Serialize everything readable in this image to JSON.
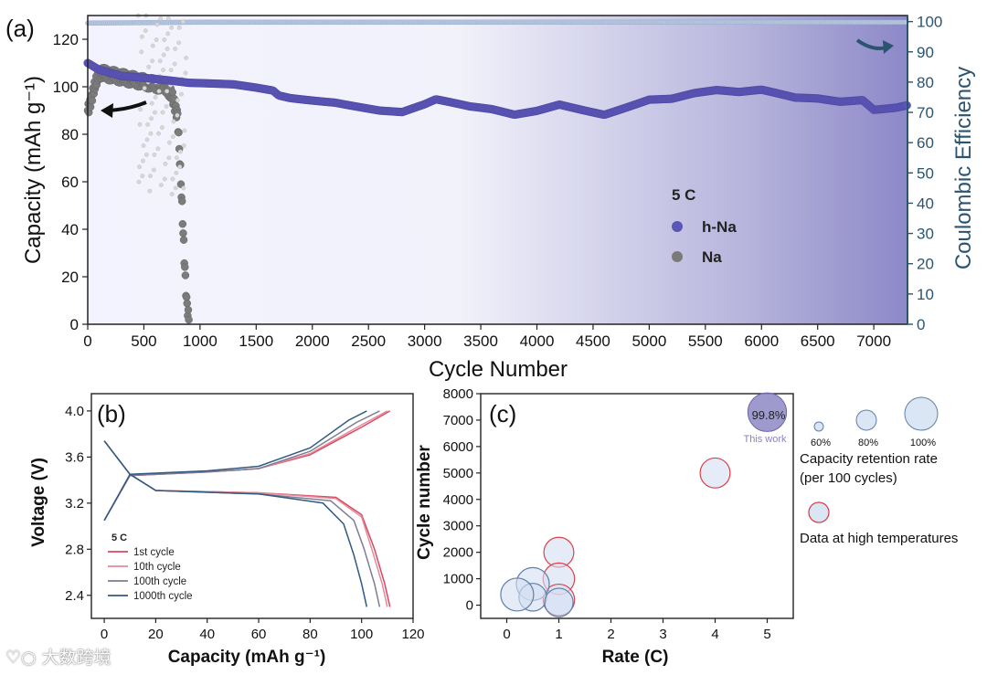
{
  "panel_a": {
    "label": "(a)",
    "xlabel": "Cycle Number",
    "ylabel": "Capacity (mAh g⁻¹)",
    "y2label": "Coulombic Efficiency",
    "x_ticks": [
      "0",
      "500",
      "1000",
      "1500",
      "2000",
      "2500",
      "3000",
      "3500",
      "4000",
      "4500",
      "5000",
      "5500",
      "6000",
      "6500",
      "7000"
    ],
    "y_ticks": [
      "0",
      "20",
      "40",
      "60",
      "80",
      "100",
      "120"
    ],
    "y2_ticks": [
      "0",
      "10",
      "20",
      "30",
      "40",
      "50",
      "60",
      "70",
      "80",
      "90",
      "100"
    ],
    "legend_title": "5 C",
    "legend_items": [
      {
        "name": "h-Na",
        "color": "#5b55b6"
      },
      {
        "name": "Na",
        "color": "#7a7a7a"
      }
    ]
  },
  "panel_b": {
    "label": "(b)",
    "xlabel": "Capacity (mAh g⁻¹)",
    "ylabel": "Voltage (V)",
    "x_ticks": [
      "0",
      "20",
      "40",
      "60",
      "80",
      "100",
      "120"
    ],
    "y_ticks": [
      "2.4",
      "2.8",
      "3.2",
      "3.6",
      "4.0"
    ],
    "rate_label": "5 C",
    "legend_items": [
      {
        "name": "1st cycle",
        "color": "#d9485f"
      },
      {
        "name": "10th cycle",
        "color": "#e58a9a"
      },
      {
        "name": "100th cycle",
        "color": "#7d7d95"
      },
      {
        "name": "1000th cycle",
        "color": "#2f5a82"
      }
    ]
  },
  "panel_c": {
    "label": "(c)",
    "xlabel": "Rate (C)",
    "ylabel": "Cycle number",
    "x_ticks": [
      "0",
      "1",
      "2",
      "3",
      "4",
      "5"
    ],
    "y_ticks": [
      "0",
      "1000",
      "2000",
      "3000",
      "4000",
      "5000",
      "6000",
      "7000",
      "8000"
    ],
    "highlight_value": "99.8%",
    "highlight_caption": "This work",
    "size_legend": [
      "60%",
      "80%",
      "100%"
    ],
    "size_legend_title": "Capacity retention rate",
    "size_legend_subtitle": "(per 100 cycles)",
    "temp_legend": "Data at high temperatures"
  },
  "watermark": "大数跨境",
  "chart_data": [
    {
      "type": "scatter",
      "title": "",
      "xlabel": "Cycle Number",
      "ylabel": "Capacity (mAh g-1)",
      "y2label": "Coulombic Efficiency",
      "xlim": [
        0,
        7300
      ],
      "ylim": [
        0,
        130
      ],
      "y2lim": [
        0,
        102
      ],
      "series": [
        {
          "name": "h-Na capacity",
          "x": [
            0,
            100,
            300,
            500,
            700,
            900,
            1100,
            1300,
            1500,
            1650,
            1700,
            1800,
            2000,
            2200,
            2400,
            2600,
            2800,
            3000,
            3100,
            3200,
            3400,
            3600,
            3800,
            4000,
            4200,
            4400,
            4600,
            4800,
            5000,
            5200,
            5400,
            5600,
            5800,
            6000,
            6100,
            6300,
            6500,
            6700,
            6900,
            7000,
            7200,
            7300
          ],
          "y": [
            110,
            107,
            104,
            103,
            102,
            101,
            101,
            101,
            100,
            99,
            97,
            96,
            95,
            94,
            92,
            90,
            89,
            92,
            94,
            93,
            91,
            90,
            88,
            90,
            93,
            91,
            89,
            92,
            95,
            95,
            97,
            98,
            97,
            98,
            97,
            95,
            95,
            94,
            95,
            91,
            92,
            93
          ]
        },
        {
          "name": "Na capacity",
          "x": [
            0,
            100,
            200,
            300,
            400,
            500,
            600,
            700,
            750,
            800,
            830,
            860,
            880,
            900
          ],
          "y": [
            90,
            106,
            105,
            104,
            103,
            102,
            101,
            100,
            96,
            88,
            60,
            28,
            10,
            2
          ]
        },
        {
          "name": "h-Na CE",
          "x": [
            0,
            1000,
            2000,
            3000,
            4000,
            5000,
            6000,
            7000,
            7300
          ],
          "y": [
            99.5,
            99.8,
            99.8,
            99.8,
            99.8,
            99.8,
            99.8,
            99.8,
            99.8
          ]
        }
      ]
    },
    {
      "type": "line",
      "xlabel": "Capacity (mAh g-1)",
      "ylabel": "Voltage (V)",
      "xlim": [
        -5,
        120
      ],
      "ylim": [
        2.2,
        4.15
      ],
      "series": [
        {
          "name": "1st cycle charge",
          "x": [
            0,
            10,
            40,
            60,
            80,
            100,
            111
          ],
          "y": [
            3.05,
            3.44,
            3.47,
            3.5,
            3.62,
            3.86,
            4.0
          ]
        },
        {
          "name": "1st cycle discharge",
          "x": [
            0,
            10,
            20,
            60,
            90,
            100,
            105,
            109,
            111
          ],
          "y": [
            3.74,
            3.45,
            3.31,
            3.29,
            3.25,
            3.1,
            2.8,
            2.5,
            2.3
          ]
        },
        {
          "name": "10th cycle charge",
          "x": [
            0,
            10,
            40,
            60,
            80,
            100,
            110
          ],
          "y": [
            3.05,
            3.44,
            3.47,
            3.5,
            3.63,
            3.88,
            4.0
          ]
        },
        {
          "name": "10th cycle discharge",
          "x": [
            0,
            10,
            20,
            60,
            90,
            100,
            104,
            108,
            110
          ],
          "y": [
            3.74,
            3.45,
            3.31,
            3.29,
            3.24,
            3.08,
            2.8,
            2.5,
            2.3
          ]
        },
        {
          "name": "100th cycle charge",
          "x": [
            0,
            10,
            40,
            60,
            80,
            98,
            107
          ],
          "y": [
            3.05,
            3.44,
            3.47,
            3.5,
            3.65,
            3.9,
            4.0
          ]
        },
        {
          "name": "100th cycle discharge",
          "x": [
            0,
            10,
            20,
            60,
            88,
            97,
            101,
            105,
            107
          ],
          "y": [
            3.74,
            3.45,
            3.31,
            3.28,
            3.22,
            3.05,
            2.8,
            2.5,
            2.3
          ]
        },
        {
          "name": "1000th cycle charge",
          "x": [
            0,
            10,
            40,
            60,
            80,
            95,
            102
          ],
          "y": [
            3.05,
            3.45,
            3.48,
            3.52,
            3.68,
            3.92,
            4.0
          ]
        },
        {
          "name": "1000th cycle discharge",
          "x": [
            0,
            10,
            20,
            60,
            85,
            93,
            97,
            100,
            102
          ],
          "y": [
            3.74,
            3.45,
            3.31,
            3.28,
            3.2,
            3.02,
            2.75,
            2.5,
            2.3
          ]
        }
      ]
    },
    {
      "type": "scatter",
      "xlabel": "Rate (C)",
      "ylabel": "Cycle number",
      "xlim": [
        -0.5,
        5.5
      ],
      "ylim": [
        -500,
        8000
      ],
      "points": [
        {
          "rate": 5,
          "cycles": 7300,
          "retention": 99.8,
          "this_work": true,
          "high_temp": false
        },
        {
          "rate": 4,
          "cycles": 5000,
          "retention": 88,
          "this_work": false,
          "high_temp": true
        },
        {
          "rate": 1,
          "cycles": 2000,
          "retention": 88,
          "this_work": false,
          "high_temp": true
        },
        {
          "rate": 1,
          "cycles": 1000,
          "retention": 90,
          "this_work": false,
          "high_temp": true
        },
        {
          "rate": 1,
          "cycles": 200,
          "retention": 90,
          "this_work": false,
          "high_temp": true
        },
        {
          "rate": 0.5,
          "cycles": 800,
          "retention": 92,
          "this_work": false,
          "high_temp": false
        },
        {
          "rate": 0.5,
          "cycles": 300,
          "retention": 85,
          "this_work": false,
          "high_temp": false
        },
        {
          "rate": 0.2,
          "cycles": 400,
          "retention": 92,
          "this_work": false,
          "high_temp": false
        },
        {
          "rate": 1,
          "cycles": 100,
          "retention": 86,
          "this_work": false,
          "high_temp": false
        }
      ]
    }
  ]
}
